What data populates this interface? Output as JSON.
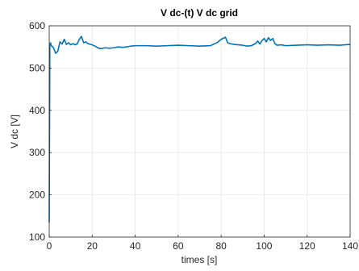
{
  "chart_data": {
    "type": "line",
    "title": "V dc-(t) V dc grid",
    "xlabel": "times [s]",
    "ylabel": "V dc [V]",
    "xlim": [
      0,
      140
    ],
    "ylim": [
      100,
      600
    ],
    "xticks": [
      "0",
      "20",
      "40",
      "60",
      "80",
      "100",
      "120",
      "140"
    ],
    "yticks": [
      "100",
      "200",
      "300",
      "400",
      "500",
      "600"
    ],
    "grid": true,
    "line_color": "#0072BD",
    "series": [
      {
        "x": [
          0,
          0.3,
          0.6,
          1,
          2,
          3,
          4,
          5,
          6,
          7,
          8,
          9,
          10,
          11,
          12,
          13,
          14,
          15,
          16,
          17,
          18,
          20,
          22,
          23,
          24,
          26,
          28,
          30,
          32,
          34,
          36,
          38,
          40,
          45,
          50,
          55,
          60,
          65,
          70,
          75,
          78,
          80,
          82,
          83,
          84,
          86,
          88,
          90,
          92,
          94,
          96,
          97,
          98,
          99,
          100,
          101,
          102,
          103,
          104,
          105,
          106,
          108,
          110,
          115,
          120,
          125,
          130,
          135,
          140
        ],
        "y": [
          135,
          555,
          560,
          553,
          548,
          535,
          540,
          562,
          557,
          568,
          556,
          560,
          555,
          558,
          555,
          557,
          568,
          575,
          560,
          562,
          558,
          555,
          550,
          547,
          546,
          548,
          547,
          548,
          550,
          549,
          550,
          552,
          553,
          553,
          552,
          553,
          554,
          553,
          552,
          553,
          560,
          568,
          573,
          560,
          558,
          556,
          555,
          554,
          552,
          553,
          558,
          564,
          557,
          565,
          570,
          562,
          572,
          565,
          570,
          558,
          554,
          555,
          553,
          554,
          555,
          554,
          555,
          554,
          556
        ]
      }
    ]
  }
}
